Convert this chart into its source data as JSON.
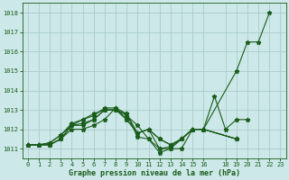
{
  "background_color": "#cce8e8",
  "grid_color": "#aacccc",
  "line_color": "#1a5c1a",
  "title": "Graphe pression niveau de la mer (hPa)",
  "xlim": [
    -0.5,
    23.5
  ],
  "ylim": [
    1010.5,
    1018.5
  ],
  "yticks": [
    1011,
    1012,
    1013,
    1014,
    1015,
    1016,
    1017,
    1018
  ],
  "xticks": [
    0,
    1,
    2,
    3,
    4,
    5,
    6,
    7,
    8,
    9,
    10,
    11,
    12,
    13,
    14,
    15,
    16,
    18,
    19,
    20,
    21,
    22,
    23
  ],
  "s1_x": [
    0,
    1,
    2,
    3,
    4,
    5,
    6,
    7,
    8,
    9,
    10,
    11,
    12,
    13,
    14,
    15,
    16,
    19,
    20,
    21,
    22
  ],
  "s1_y": [
    1011.2,
    1011.2,
    1011.2,
    1011.5,
    1012.2,
    1012.2,
    1012.5,
    1013.0,
    1013.0,
    1012.7,
    1012.2,
    1011.5,
    1010.8,
    1011.0,
    1011.0,
    1012.0,
    1012.0,
    1015.0,
    1016.5,
    1016.5,
    1018.0
  ],
  "s2_x": [
    0,
    1,
    2,
    3,
    4,
    5,
    6,
    7,
    8,
    9,
    10,
    11,
    12,
    13,
    14,
    15,
    16,
    17,
    18,
    19,
    20
  ],
  "s2_y": [
    1011.2,
    1011.2,
    1011.2,
    1011.5,
    1012.0,
    1012.0,
    1012.2,
    1012.5,
    1013.1,
    1012.8,
    1011.6,
    1011.5,
    1011.0,
    1011.0,
    1011.5,
    1012.0,
    1012.0,
    1013.7,
    1012.0,
    1012.5,
    1012.5
  ],
  "s3_x": [
    0,
    1,
    2,
    3,
    4,
    5,
    6,
    7,
    8,
    9,
    10,
    11,
    12,
    13,
    14,
    15,
    16,
    19
  ],
  "s3_y": [
    1011.2,
    1011.2,
    1011.2,
    1011.5,
    1012.2,
    1012.5,
    1012.7,
    1013.1,
    1013.1,
    1012.5,
    1011.8,
    1012.0,
    1011.0,
    1011.1,
    1011.5,
    1012.0,
    1012.0,
    1011.5
  ],
  "s4_x": [
    0,
    1,
    2,
    3,
    4,
    5,
    6,
    7,
    8,
    9,
    10,
    11,
    12,
    13,
    14,
    15,
    16,
    19
  ],
  "s4_y": [
    1011.2,
    1011.2,
    1011.3,
    1011.7,
    1012.2,
    1012.3,
    1012.5,
    1013.0,
    1013.0,
    1012.5,
    1011.8,
    1012.0,
    1011.5,
    1011.2,
    1011.5,
    1012.0,
    1012.0,
    1011.5
  ],
  "s5_x": [
    0,
    1,
    2,
    3,
    4,
    5,
    6,
    7,
    8,
    9,
    10,
    11,
    12,
    13,
    14,
    15,
    16,
    19
  ],
  "s5_y": [
    1011.2,
    1011.2,
    1011.3,
    1011.7,
    1012.3,
    1012.5,
    1012.8,
    1013.0,
    1013.0,
    1012.8,
    1011.8,
    1012.0,
    1011.5,
    1011.2,
    1011.5,
    1012.0,
    1012.0,
    1011.5
  ]
}
